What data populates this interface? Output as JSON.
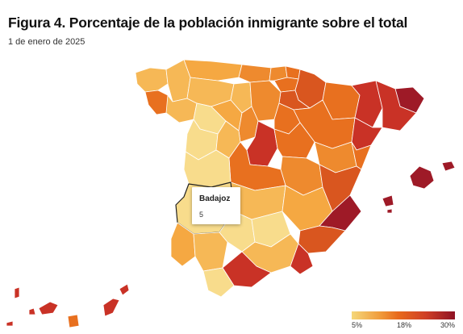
{
  "header": {
    "title": "Figura 4. Porcentaje de la población inmigrante sobre el total",
    "subtitle": "1 de enero de 2025"
  },
  "tooltip": {
    "province": "Badajoz",
    "value": "5"
  },
  "legend": {
    "ticks": [
      "5%",
      "18%",
      "30%"
    ],
    "colors": [
      "#f5d77a",
      "#f09a3a",
      "#e86a1c",
      "#cf3f26",
      "#8e1224"
    ]
  },
  "map_colors": {
    "lightest": "#f8dc8c",
    "light": "#f6b856",
    "medium_light": "#f5a842",
    "medium": "#ee8a2e",
    "orange": "#e8701f",
    "dark_orange": "#d9561f",
    "red": "#c93226",
    "dark_red": "#9e1a27",
    "border": "#ffffff",
    "highlight_border": "#222222"
  }
}
